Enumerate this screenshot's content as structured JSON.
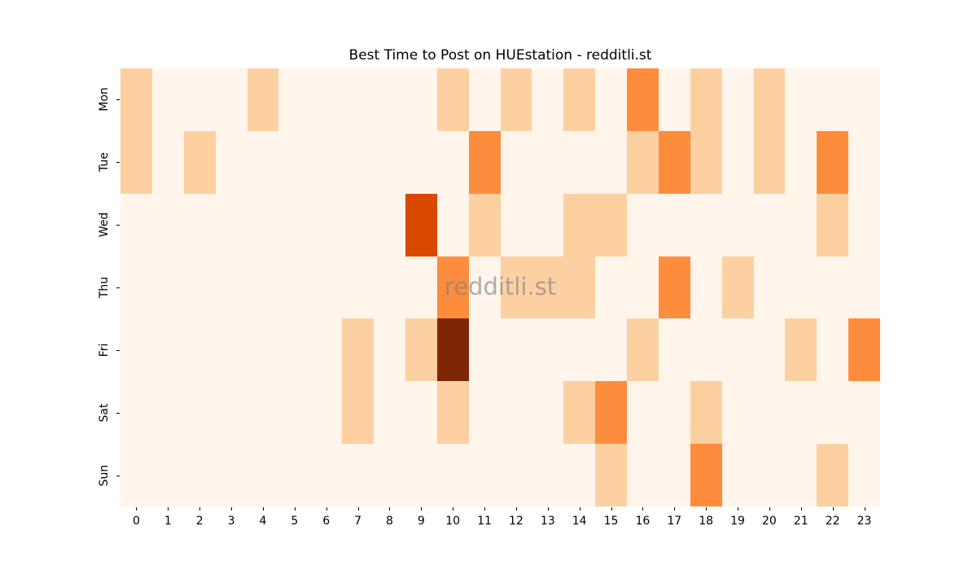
{
  "title": "Best Time to Post on HUEstation - redditli.st",
  "watermark": "redditli.st",
  "chart_data": {
    "type": "heatmap",
    "title": "Best Time to Post on HUEstation - redditli.st",
    "xlabel": "",
    "ylabel": "",
    "x_tick_labels": [
      "0",
      "1",
      "2",
      "3",
      "4",
      "5",
      "6",
      "7",
      "8",
      "9",
      "10",
      "11",
      "12",
      "13",
      "14",
      "15",
      "16",
      "17",
      "18",
      "19",
      "20",
      "21",
      "22",
      "23"
    ],
    "y_tick_labels": [
      "Mon",
      "Tue",
      "Wed",
      "Thu",
      "Fri",
      "Sat",
      "Sun"
    ],
    "legend": "none",
    "grid": false,
    "colormap": "Oranges",
    "value_range": [
      0,
      4
    ],
    "level_colors": [
      "#FFF5EB",
      "#FDD0A2",
      "#FD8D3C",
      "#D94801",
      "#7F2704"
    ],
    "values": [
      [
        1,
        0,
        0,
        0,
        1,
        0,
        0,
        0,
        0,
        0,
        1,
        0,
        1,
        0,
        1,
        0,
        2,
        0,
        1,
        0,
        1,
        0,
        0,
        0
      ],
      [
        1,
        0,
        1,
        0,
        0,
        0,
        0,
        0,
        0,
        0,
        0,
        2,
        0,
        0,
        0,
        0,
        1,
        2,
        1,
        0,
        1,
        0,
        2,
        0
      ],
      [
        0,
        0,
        0,
        0,
        0,
        0,
        0,
        0,
        0,
        3,
        0,
        1,
        0,
        0,
        1,
        1,
        0,
        0,
        0,
        0,
        0,
        0,
        1,
        0
      ],
      [
        0,
        0,
        0,
        0,
        0,
        0,
        0,
        0,
        0,
        0,
        2,
        0,
        1,
        1,
        1,
        0,
        0,
        2,
        0,
        1,
        0,
        0,
        0,
        0
      ],
      [
        0,
        0,
        0,
        0,
        0,
        0,
        0,
        1,
        0,
        1,
        4,
        0,
        0,
        0,
        0,
        0,
        1,
        0,
        0,
        0,
        0,
        1,
        0,
        2
      ],
      [
        0,
        0,
        0,
        0,
        0,
        0,
        0,
        1,
        0,
        0,
        1,
        0,
        0,
        0,
        1,
        2,
        0,
        0,
        1,
        0,
        0,
        0,
        0,
        0
      ],
      [
        0,
        0,
        0,
        0,
        0,
        0,
        0,
        0,
        0,
        0,
        0,
        0,
        0,
        0,
        0,
        1,
        0,
        0,
        2,
        0,
        0,
        0,
        1,
        0
      ]
    ],
    "annotations": [
      {
        "text": "redditli.st",
        "position": "center",
        "color": "#808080"
      }
    ]
  }
}
